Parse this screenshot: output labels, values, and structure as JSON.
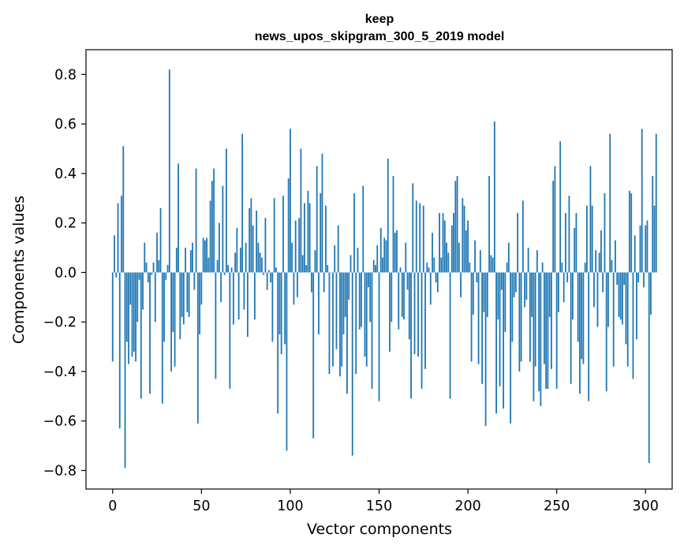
{
  "chart_data": {
    "type": "bar",
    "title_line1": "keep",
    "title_line2": "news_upos_skipgram_300_5_2019 model",
    "xlabel": "Vector components",
    "ylabel": "Components values",
    "xlim": [
      -15,
      315
    ],
    "ylim": [
      -0.875,
      0.9
    ],
    "xticks": [
      0,
      50,
      100,
      150,
      200,
      250,
      300
    ],
    "yticks": [
      -0.8,
      -0.6,
      -0.4,
      -0.2,
      0.0,
      0.2,
      0.4,
      0.6,
      0.8
    ],
    "ytick_labels": [
      "−0.8",
      "−0.6",
      "−0.4",
      "−0.2",
      "0.0",
      "0.2",
      "0.4",
      "0.6",
      "0.8"
    ],
    "xtick_labels": [
      "0",
      "50",
      "100",
      "150",
      "200",
      "250",
      "300"
    ],
    "bar_color": "#1f77b4",
    "values": [
      -0.36,
      0.15,
      -0.02,
      0.28,
      -0.63,
      0.31,
      0.51,
      -0.79,
      -0.28,
      -0.37,
      -0.13,
      -0.34,
      -0.32,
      -0.36,
      -0.2,
      -0.03,
      -0.51,
      -0.15,
      0.12,
      0.04,
      -0.04,
      -0.49,
      -0.01,
      0.04,
      -0.2,
      0.16,
      0.05,
      0.26,
      -0.53,
      -0.28,
      -0.03,
      0.03,
      0.82,
      -0.4,
      -0.24,
      -0.38,
      0.1,
      0.44,
      -0.27,
      -0.18,
      -0.21,
      0.1,
      -0.16,
      -0.18,
      0.09,
      0.12,
      -0.07,
      0.42,
      -0.61,
      -0.25,
      -0.13,
      0.14,
      0.13,
      0.14,
      0.06,
      0.29,
      0.37,
      0.42,
      -0.43,
      0.05,
      0.2,
      -0.12,
      0.35,
      -0.01,
      0.5,
      0.03,
      -0.47,
      0.02,
      -0.21,
      0.08,
      0.18,
      -0.19,
      0.1,
      0.56,
      -0.15,
      0.12,
      -0.26,
      0.26,
      0.3,
      0.19,
      -0.19,
      0.25,
      0.12,
      0.08,
      0.06,
      -0.01,
      0.22,
      -0.07,
      0.01,
      -0.04,
      -0.28,
      0.3,
      0.02,
      -0.57,
      -0.25,
      -0.33,
      0.31,
      -0.29,
      -0.72,
      0.38,
      0.58,
      0.12,
      -0.13,
      0.21,
      -0.1,
      0.22,
      0.5,
      0.07,
      0.28,
      0.03,
      0.33,
      0.28,
      -0.08,
      -0.67,
      0.09,
      0.43,
      -0.25,
      0.32,
      0.48,
      -0.08,
      0.27,
      0.03,
      -0.41,
      0.0,
      -0.38,
      0.11,
      -0.31,
      0.19,
      -0.42,
      -0.38,
      -0.25,
      -0.18,
      -0.49,
      -0.11,
      0.07,
      -0.74,
      0.32,
      -0.41,
      0.1,
      -0.23,
      -0.22,
      0.35,
      -0.34,
      -0.38,
      -0.06,
      -0.2,
      -0.47,
      0.05,
      0.03,
      0.11,
      -0.52,
      0.18,
      0.06,
      0.14,
      0.13,
      0.46,
      -0.32,
      -0.2,
      0.39,
      0.16,
      0.17,
      -0.23,
      0.02,
      -0.18,
      -0.19,
      0.12,
      -0.07,
      -0.27,
      -0.51,
      0.36,
      -0.33,
      0.29,
      -0.34,
      0.28,
      -0.47,
      0.27,
      -0.39,
      0.04,
      0.02,
      -0.13,
      0.16,
      0.06,
      -0.04,
      -0.08,
      0.24,
      0.06,
      0.24,
      0.21,
      0.12,
      0.08,
      -0.51,
      0.19,
      0.24,
      0.37,
      0.39,
      0.12,
      -0.1,
      0.3,
      0.27,
      0.17,
      0.21,
      0.04,
      -0.36,
      -0.17,
      0.13,
      -0.04,
      -0.37,
      0.09,
      -0.45,
      -0.16,
      -0.62,
      -0.18,
      0.39,
      0.07,
      0.06,
      0.61,
      -0.57,
      -0.19,
      -0.46,
      -0.07,
      -0.55,
      -0.24,
      0.04,
      0.12,
      -0.61,
      -0.28,
      -0.1,
      -0.08,
      0.24,
      -0.4,
      -0.36,
      0.29,
      -0.14,
      -0.11,
      0.1,
      -0.36,
      -0.18,
      -0.52,
      -0.38,
      0.09,
      -0.48,
      -0.54,
      0.04,
      -0.37,
      -0.47,
      -0.47,
      -0.18,
      -0.39,
      0.37,
      0.43,
      -0.47,
      -0.16,
      0.53,
      0.04,
      -0.12,
      0.24,
      -0.04,
      0.31,
      -0.45,
      -0.19,
      0.18,
      0.24,
      -0.28,
      -0.49,
      -0.35,
      -0.37,
      0.04,
      0.27,
      -0.52,
      0.43,
      0.27,
      -0.14,
      0.09,
      -0.22,
      0.08,
      0.17,
      -0.08,
      0.32,
      -0.48,
      -0.22,
      0.56,
      0.05,
      -0.38,
      0.13,
      -0.05,
      -0.18,
      -0.19,
      -0.21,
      -0.05,
      -0.29,
      -0.38,
      0.33,
      0.32,
      -0.43,
      0.15,
      -0.27,
      -0.04,
      0.19,
      0.58,
      -0.06,
      0.19,
      0.21,
      -0.77,
      -0.17,
      0.39,
      0.27,
      0.56
    ]
  }
}
